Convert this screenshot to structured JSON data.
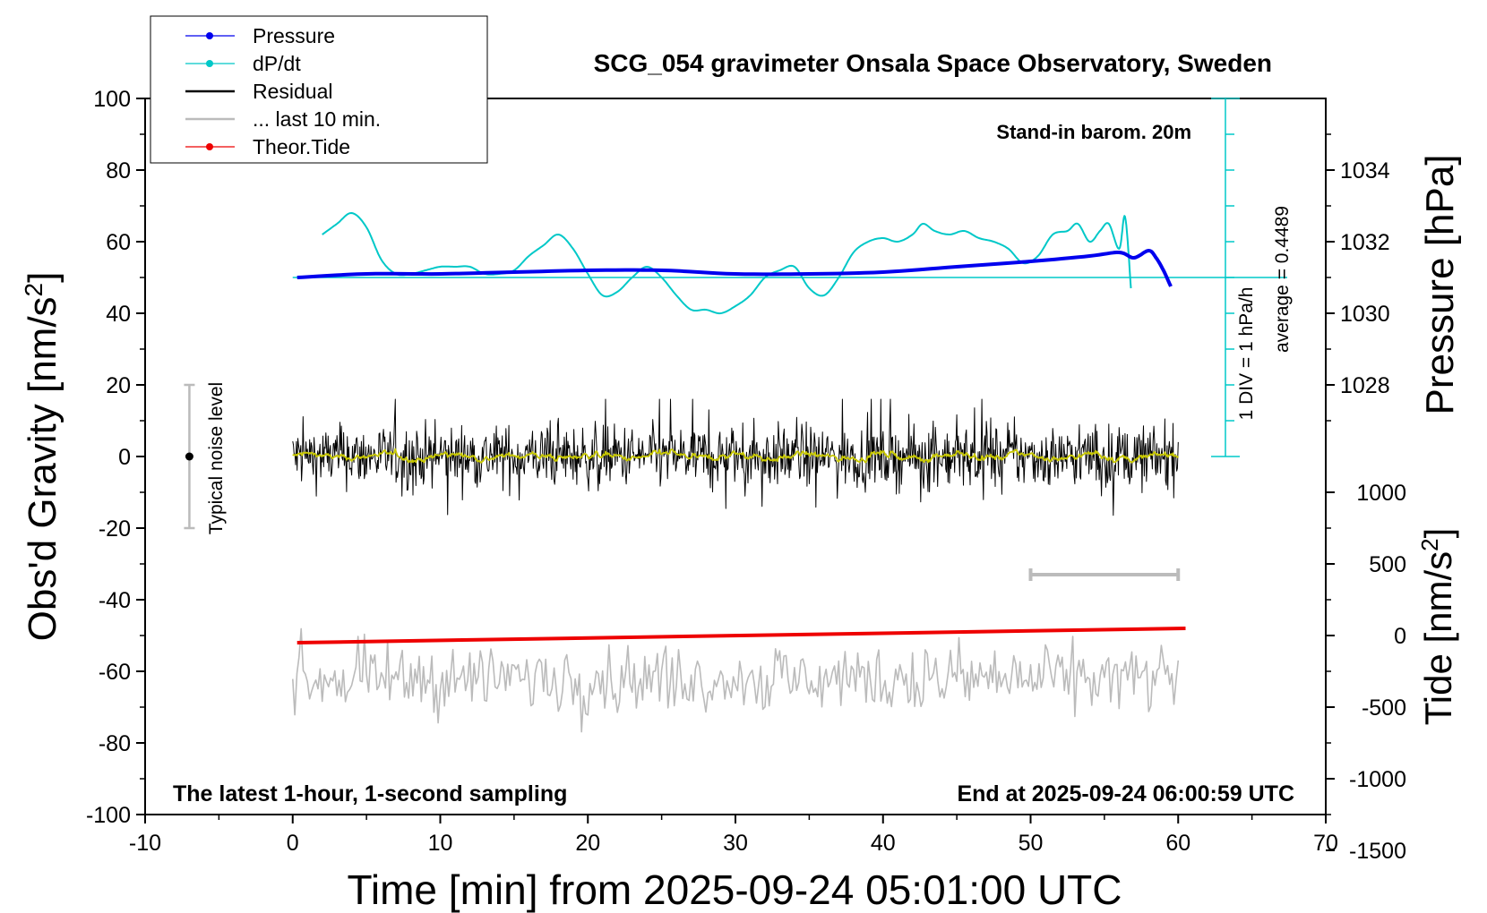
{
  "chart_data": {
    "type": "line",
    "title": "SCG_054 gravimeter Onsala Space Observatory, Sweden",
    "xlabel": "Time [min] from 2025-09-24 05:01:00 UTC",
    "ylabel_left": "Obs'd Gravity [nm/s2]",
    "ylabel_right_top": "Pressure [hPa]",
    "ylabel_right_bottom": "Tide [nm/s2]",
    "annotation_top_right": "Stand-in barom. 20m",
    "annotation_bottom_left": "The latest 1-hour, 1-second sampling",
    "annotation_bottom_right": "End at 2025-09-24 06:00:59 UTC",
    "noise_label": "Typical noise level",
    "div_label": "1 DIV = 1 hPa/h",
    "average_label": "average = 0.4489",
    "xlim": [
      -10,
      70
    ],
    "ylim_left": [
      -100,
      100
    ],
    "x_ticks": [
      "-10",
      "0",
      "10",
      "20",
      "30",
      "40",
      "50",
      "60",
      "70"
    ],
    "y_ticks_left": [
      "100",
      "80",
      "60",
      "40",
      "20",
      "0",
      "-20",
      "-40",
      "-60",
      "-80",
      "-100"
    ],
    "y_ticks_pressure": [
      "1034",
      "1032",
      "1030",
      "1028"
    ],
    "y_ticks_tide": [
      "1000",
      "500",
      "0",
      "-500",
      "-1000",
      "-1500"
    ],
    "legend": {
      "placement": "top-left",
      "entries": [
        "Pressure",
        "dP/dt",
        "Residual",
        "... last 10 min.",
        "Theor.Tide"
      ]
    },
    "colors": {
      "pressure": "#0000ee",
      "dpdt": "#00c8c8",
      "residual": "#000000",
      "residual_smooth": "#c8c800",
      "last10": "#bbbbbb",
      "tide": "#ee0000"
    },
    "series": [
      {
        "name": "Pressure",
        "unit": "hPa",
        "x": [
          0.3,
          5,
          10,
          15,
          20,
          25,
          30,
          35,
          40,
          45,
          50,
          54,
          56,
          57,
          58,
          58.5,
          59,
          59.5
        ],
        "values": [
          1031.0,
          1031.1,
          1031.1,
          1031.15,
          1031.2,
          1031.2,
          1031.1,
          1031.1,
          1031.15,
          1031.3,
          1031.45,
          1031.6,
          1031.7,
          1031.55,
          1031.75,
          1031.55,
          1031.2,
          1030.75
        ]
      },
      {
        "name": "dP/dt",
        "unit": "nm/s2 axis",
        "x": [
          2,
          3,
          4,
          5,
          6,
          7,
          8,
          9,
          10,
          11,
          12,
          13,
          14,
          15,
          16,
          17,
          18,
          19,
          20,
          21,
          22,
          23,
          24,
          25,
          26,
          27,
          28,
          29,
          30,
          31,
          32,
          33,
          34,
          35,
          36,
          37,
          38,
          39,
          40,
          41,
          42,
          42.7,
          43.5,
          44.5,
          45.5,
          46.5,
          47.5,
          48.5,
          49.5,
          50.5,
          51.5,
          52.5,
          53.2,
          54,
          54.7,
          55.3,
          56,
          56.4,
          56.8
        ],
        "values": [
          62,
          65,
          68,
          64,
          55,
          51,
          51,
          52,
          53,
          53,
          53,
          51,
          51,
          52,
          56,
          59,
          62,
          58,
          51,
          45,
          46,
          50,
          53,
          50,
          45,
          41,
          41,
          40,
          42,
          45,
          50,
          52,
          53,
          47,
          45,
          50,
          57,
          60,
          61,
          60,
          62,
          65,
          63,
          62,
          63,
          61,
          60,
          58,
          54,
          56,
          62,
          63,
          65,
          60,
          63,
          65,
          58,
          67,
          47
        ]
      },
      {
        "name": "Residual",
        "unit": "nm/s2",
        "x": [
          0,
          60
        ],
        "values": [
          0,
          0
        ],
        "typical_range": [
          -15,
          15
        ]
      },
      {
        "name": "Theor.Tide",
        "unit": "nm/s2",
        "x": [
          0.3,
          60.5
        ],
        "values": [
          -52,
          -48
        ]
      },
      {
        "name": "... last 10 min.",
        "unit": "nm/s2",
        "x": [
          0,
          60
        ],
        "values": [
          -62,
          -62
        ],
        "typical_range": [
          -74,
          -50
        ]
      }
    ],
    "noise_bar": {
      "x": -7,
      "y_low": -20,
      "y_high": 20,
      "y_center": 0
    },
    "ten_min_bar": {
      "x_start": 50,
      "x_end": 60,
      "y": -33
    }
  }
}
